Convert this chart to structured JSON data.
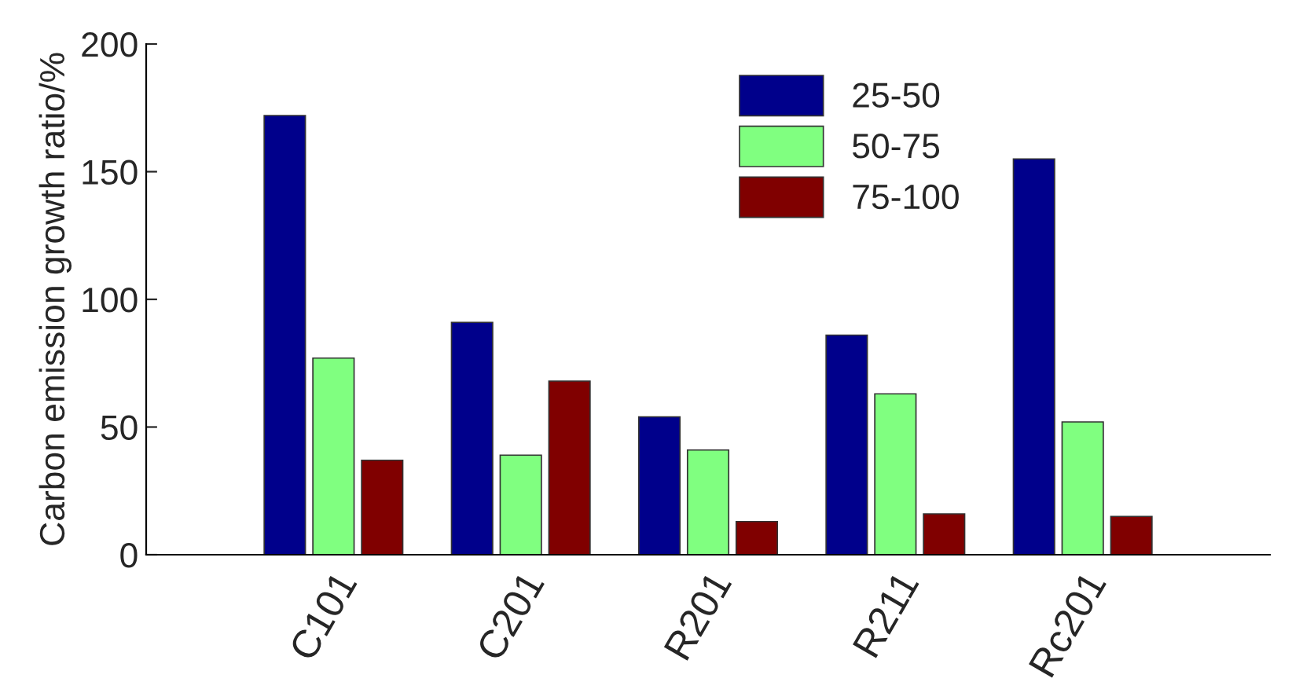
{
  "chart_data": {
    "type": "bar",
    "ylabel": "Carbon emission growth ratio/%",
    "categories": [
      "C101",
      "C201",
      "R201",
      "R211",
      "Rc201"
    ],
    "series": [
      {
        "name": "25-50",
        "color": "#00008b",
        "values": [
          172,
          91,
          54,
          86,
          155
        ]
      },
      {
        "name": "50-75",
        "color": "#80ff80",
        "values": [
          77,
          39,
          41,
          63,
          52
        ]
      },
      {
        "name": "75-100",
        "color": "#800000",
        "values": [
          37,
          68,
          13,
          16,
          15
        ]
      }
    ],
    "ylim": [
      0,
      200
    ],
    "yticks": [
      0,
      50,
      100,
      150,
      200
    ],
    "grid": false,
    "legend": "top right"
  }
}
